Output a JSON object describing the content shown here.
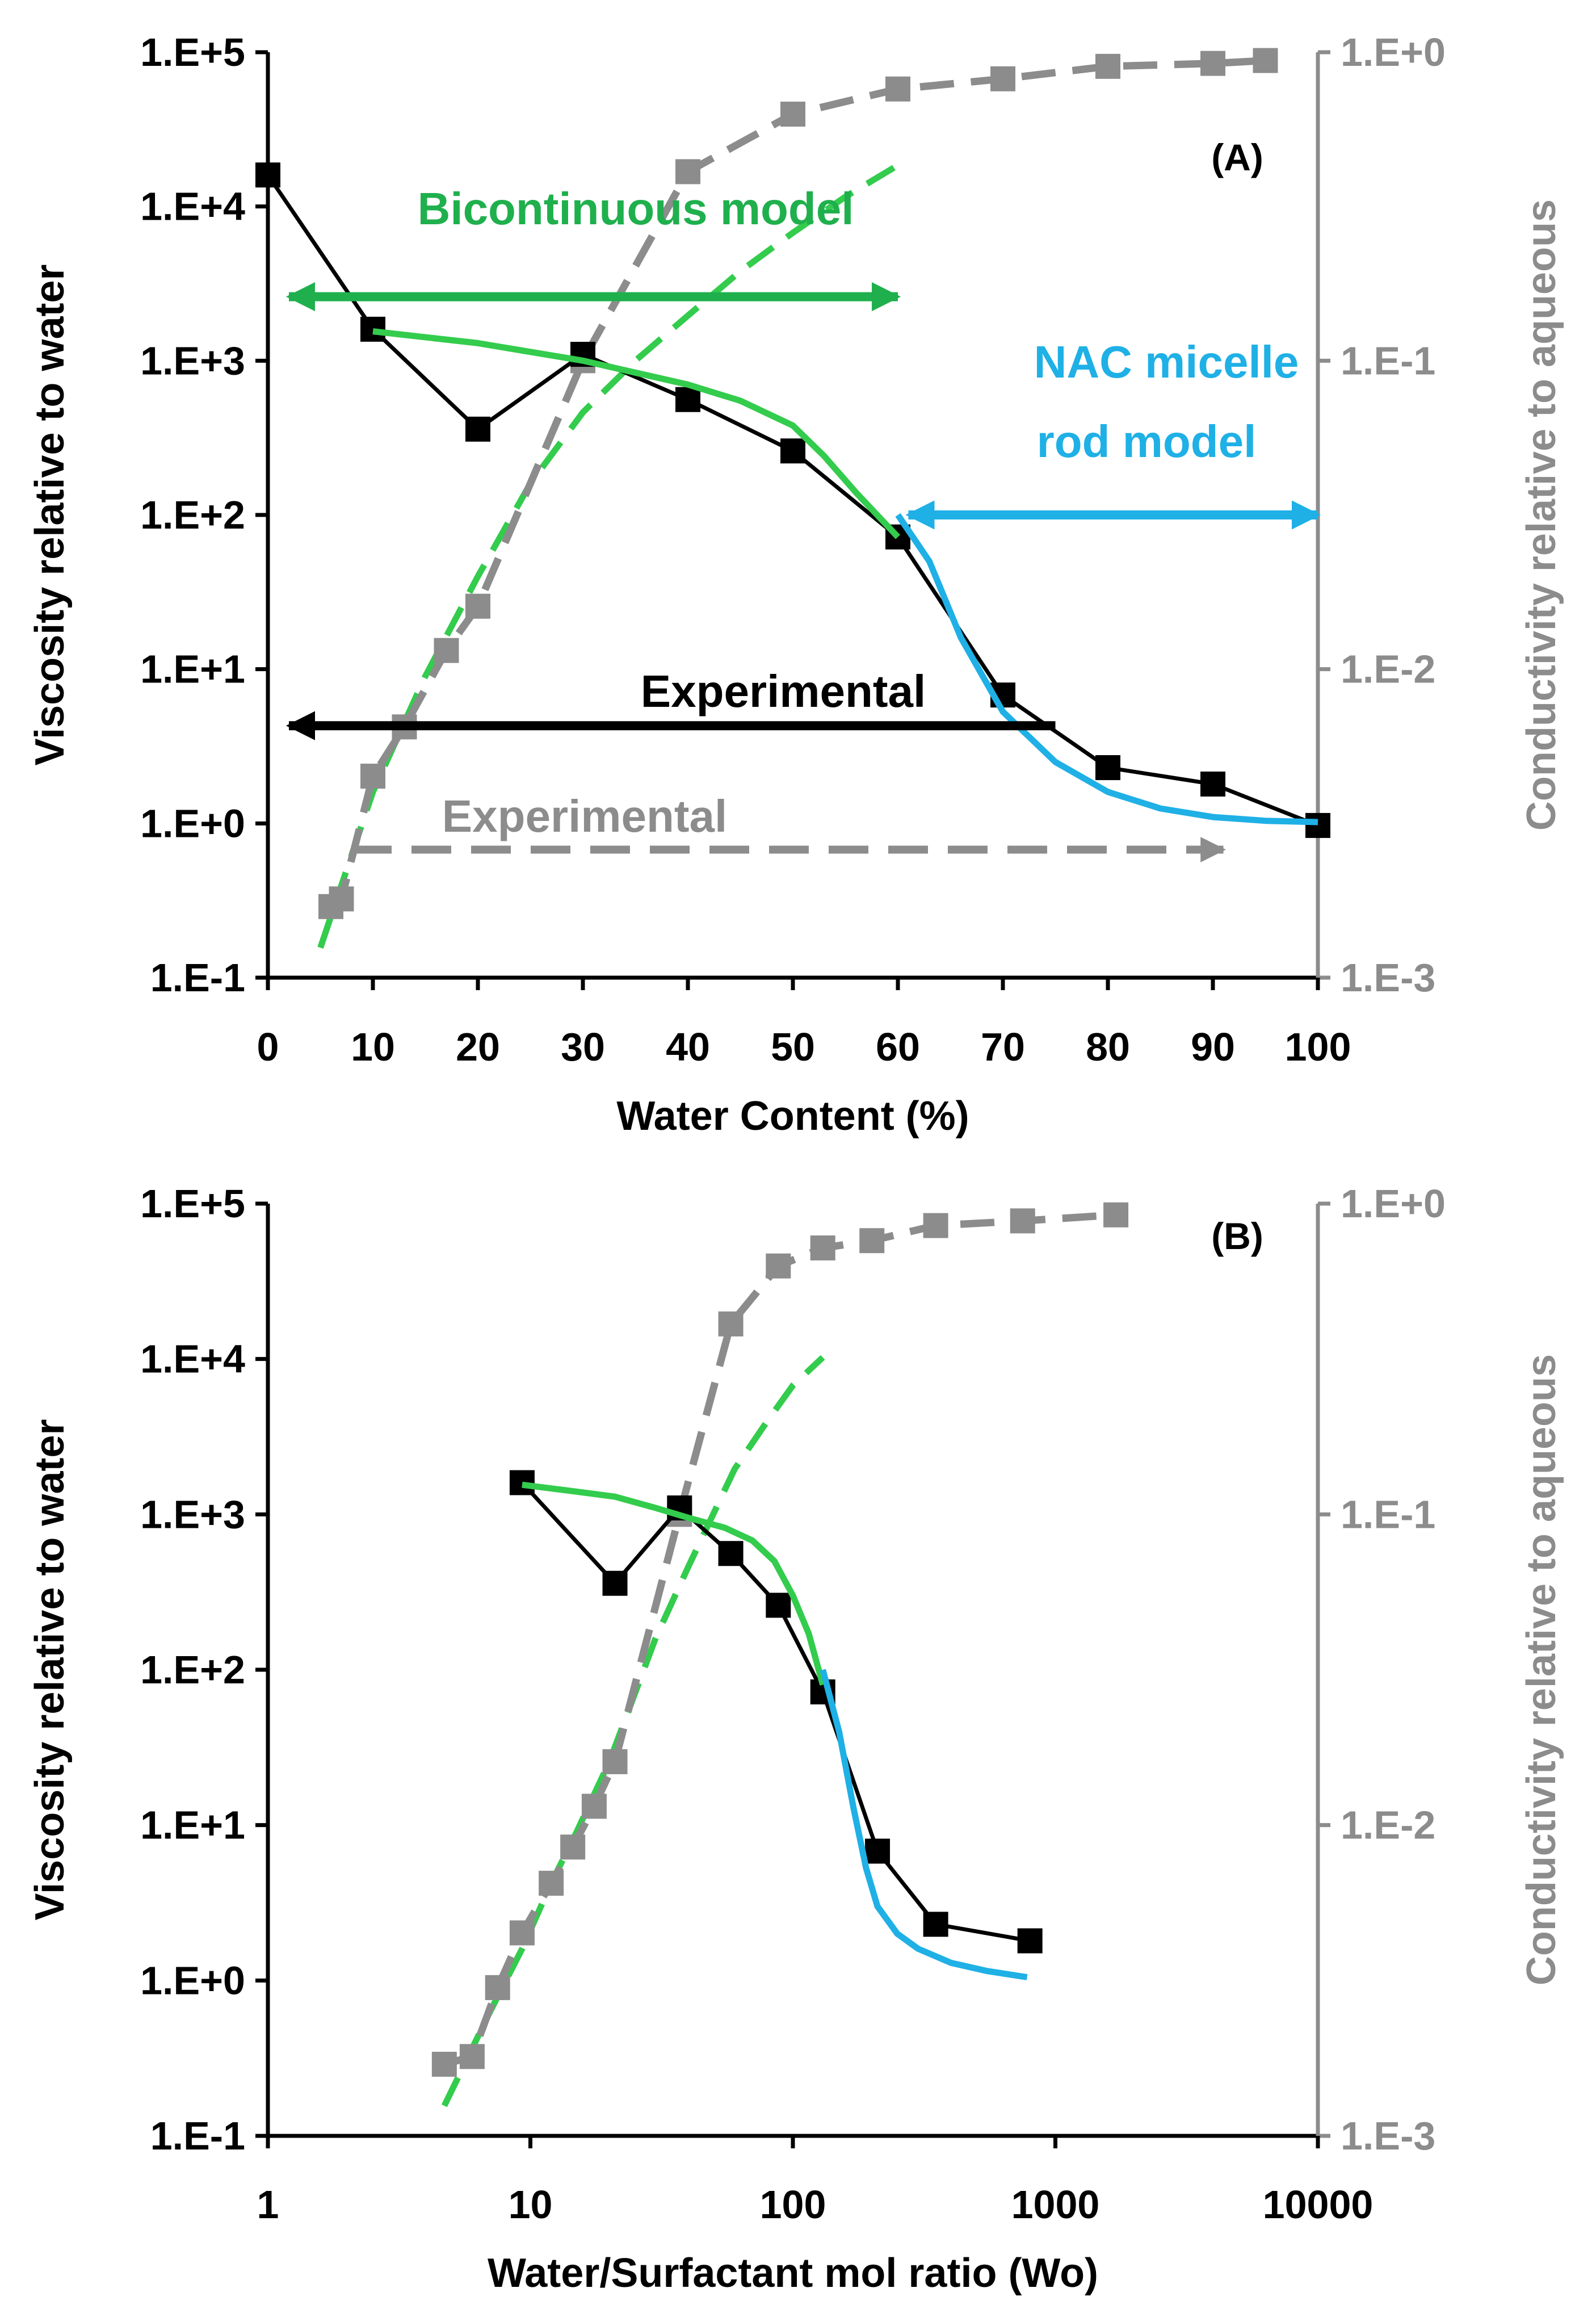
{
  "chart_data": [
    {
      "type": "line",
      "panel_label": "(A)",
      "xlabel": "Water Content (%)",
      "ylabel": "Viscosity relative to water",
      "y2label": "Conductivity relative to  aqueous",
      "xlim": [
        0,
        100
      ],
      "ylim": [
        0.1,
        100000
      ],
      "y2lim": [
        0.001,
        1
      ],
      "yscale": "log",
      "y2scale": "log",
      "x_ticks": [
        "0",
        "10",
        "20",
        "30",
        "40",
        "50",
        "60",
        "70",
        "80",
        "90",
        "100"
      ],
      "y_ticks": [
        "1.E-1",
        "1.E+0",
        "1.E+1",
        "1.E+2",
        "1.E+3",
        "1.E+4",
        "1.E+5"
      ],
      "y2_ticks": [
        "1.E-3",
        "1.E-2",
        "1.E-1",
        "1.E+0"
      ],
      "grid": false,
      "colors": {
        "viscosity": "#000000",
        "conductivity": "#8c8c8c",
        "bicontinuous": "#33cc4d",
        "rod": "#1fb0e6",
        "bicontinuous_label": "#1fb04d"
      },
      "series": [
        {
          "role": "viscosity_exp",
          "axis": "left",
          "style": "solid-square",
          "x": [
            0,
            10,
            20,
            30,
            40,
            50,
            60,
            70,
            80,
            90,
            100
          ],
          "y": [
            16000,
            1600,
            360,
            1100,
            560,
            260,
            72,
            6.8,
            2.3,
            1.8,
            0.97
          ]
        },
        {
          "role": "conductivity_exp",
          "axis": "right",
          "style": "dashed-square",
          "x": [
            6,
            7,
            10,
            13,
            17,
            20,
            30,
            40,
            50,
            60,
            70,
            80,
            90,
            95
          ],
          "y": [
            0.0017,
            0.0018,
            0.0045,
            0.0065,
            0.0115,
            0.016,
            0.1,
            0.41,
            0.63,
            0.76,
            0.82,
            0.9,
            0.92,
            0.94
          ]
        },
        {
          "role": "bicontinuous_viscosity",
          "axis": "left",
          "style": "solid-line",
          "x": [
            10,
            20,
            30,
            40,
            45,
            50,
            53,
            56,
            60
          ],
          "y": [
            1550,
            1300,
            1000,
            700,
            550,
            380,
            240,
            140,
            72
          ]
        },
        {
          "role": "bicontinuous_conductivity",
          "axis": "right",
          "style": "dashed-line",
          "x": [
            5,
            10,
            15,
            20,
            25,
            30,
            35,
            40,
            45,
            50,
            55,
            60
          ],
          "y": [
            0.00125,
            0.004,
            0.0095,
            0.02,
            0.04,
            0.068,
            0.1,
            0.14,
            0.195,
            0.26,
            0.34,
            0.43
          ]
        },
        {
          "role": "rod_viscosity",
          "axis": "left",
          "style": "solid-line",
          "x": [
            60,
            63,
            66,
            70,
            75,
            80,
            85,
            90,
            95,
            100
          ],
          "y": [
            100,
            50,
            16,
            5.3,
            2.5,
            1.6,
            1.25,
            1.1,
            1.04,
            1.02
          ]
        }
      ],
      "annotations": [
        {
          "text": "Bicontinuous model",
          "color": "#1fb04d"
        },
        {
          "text": "NAC micelle",
          "color": "#1fb0e6"
        },
        {
          "text": "rod model",
          "color": "#1fb0e6"
        },
        {
          "text": "Experimental",
          "color": "#000000"
        },
        {
          "text": "Experimental",
          "color": "#8c8c8c"
        }
      ],
      "arrows": [
        {
          "role": "bicontinuous_range",
          "x": [
            2,
            60
          ],
          "heads": "both",
          "color": "#1fb04d",
          "y": 2600
        },
        {
          "role": "rod_range",
          "x": [
            61,
            100
          ],
          "heads": "both",
          "color": "#1fb0e6",
          "y": 100
        },
        {
          "role": "viscosity_axis_arrow",
          "x": [
            75,
            2
          ],
          "heads": "end",
          "color": "#000000",
          "y": 4.3
        },
        {
          "role": "conductivity_axis_arrow",
          "x": [
            8,
            91
          ],
          "heads": "end",
          "color": "#8c8c8c",
          "y": 0.6,
          "style": "dashed"
        }
      ]
    },
    {
      "type": "line",
      "panel_label": "(B)",
      "xlabel": "Water/Surfactant mol ratio (Wo)",
      "ylabel": "Viscosity relative to water",
      "y2label": "Conductivity relative to  aqueous",
      "xlim": [
        1,
        10000
      ],
      "ylim": [
        0.1,
        100000
      ],
      "y2lim": [
        0.001,
        1
      ],
      "xscale": "log",
      "yscale": "log",
      "y2scale": "log",
      "x_ticks": [
        "1",
        "10",
        "100",
        "1000",
        "10000"
      ],
      "y_ticks": [
        "1.E-1",
        "1.E+0",
        "1.E+1",
        "1.E+2",
        "1.E+3",
        "1.E+4",
        "1.E+5"
      ],
      "y2_ticks": [
        "1.E-3",
        "1.E-2",
        "1.E-1",
        "1.E+0"
      ],
      "grid": false,
      "series": [
        {
          "role": "viscosity_exp",
          "axis": "left",
          "style": "solid-square",
          "x": [
            9.3,
            21,
            37,
            58,
            88,
            130,
            210,
            350,
            800
          ],
          "y": [
            1600,
            360,
            1100,
            560,
            260,
            72,
            6.8,
            2.3,
            1.8
          ]
        },
        {
          "role": "conductivity_exp",
          "axis": "right",
          "style": "dashed-square",
          "x": [
            4.7,
            6,
            7.5,
            9.3,
            12,
            14.5,
            17.5,
            21,
            37,
            58,
            88,
            130,
            200,
            350,
            750,
            1700
          ],
          "y": [
            0.0017,
            0.0018,
            0.003,
            0.0045,
            0.0065,
            0.0085,
            0.0115,
            0.016,
            0.1,
            0.41,
            0.63,
            0.72,
            0.76,
            0.85,
            0.88,
            0.92
          ]
        },
        {
          "role": "bicontinuous_viscosity",
          "axis": "left",
          "style": "solid-line",
          "x": [
            9.3,
            15,
            21,
            30,
            40,
            55,
            70,
            85,
            100,
            115,
            130
          ],
          "y": [
            1550,
            1400,
            1300,
            1100,
            950,
            820,
            680,
            500,
            300,
            170,
            80
          ]
        },
        {
          "role": "bicontinuous_conductivity",
          "axis": "right",
          "style": "dashed-line",
          "x": [
            4.7,
            7,
            9.3,
            12,
            15,
            20,
            30,
            40,
            60,
            80,
            100,
            130
          ],
          "y": [
            0.00125,
            0.0025,
            0.004,
            0.0065,
            0.0095,
            0.016,
            0.04,
            0.068,
            0.14,
            0.2,
            0.26,
            0.32
          ]
        },
        {
          "role": "rod_viscosity",
          "axis": "left",
          "style": "solid-line",
          "x": [
            130,
            150,
            170,
            190,
            210,
            250,
            300,
            400,
            550,
            780
          ],
          "y": [
            100,
            40,
            13,
            5.3,
            3,
            2,
            1.6,
            1.3,
            1.15,
            1.05
          ]
        }
      ]
    }
  ]
}
